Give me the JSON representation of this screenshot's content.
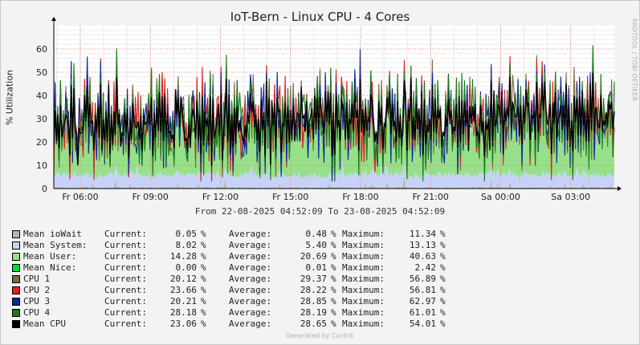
{
  "chart_data": {
    "type": "area",
    "title": "IoT-Bern - Linux CPU - 4 Cores",
    "ylabel": "% Utilization",
    "ylim": [
      0,
      70
    ],
    "yticks": [
      0,
      10,
      20,
      30,
      40,
      50,
      60
    ],
    "xlabels": [
      "Fr 06:00",
      "Fr 09:00",
      "Fr 12:00",
      "Fr 15:00",
      "Fr 18:00",
      "Fr 21:00",
      "Sa 00:00",
      "Sa 03:00"
    ],
    "x_start": "2025-08-22 04:52",
    "x_end": "2025-08-23 04:52",
    "x_hours": 24,
    "grid": true,
    "date_range": "From 22-08-2025 04:52:09 To 23-08-2025 04:52:09",
    "legend_headers": {
      "current": "Current:",
      "average": "Average:",
      "maximum": "Maximum:"
    },
    "legend_unit": "%",
    "series": [
      {
        "name": "Mean ioWait",
        "color": "#b4b4b4",
        "style": "area",
        "current": "0.05",
        "average": "0.48",
        "maximum": "11.34"
      },
      {
        "name": "Mean System:",
        "color": "#c8d2f8",
        "style": "area",
        "current": "8.02",
        "average": "5.40",
        "maximum": "13.13"
      },
      {
        "name": "Mean User:",
        "color": "#96e08a",
        "style": "area",
        "current": "14.28",
        "average": "20.69",
        "maximum": "40.63"
      },
      {
        "name": "Mean Nice:",
        "color": "#00e02a",
        "style": "area",
        "current": "0.00",
        "average": "0.01",
        "maximum": "2.42"
      },
      {
        "name": "CPU 1",
        "color": "#7a6a40",
        "style": "line",
        "current": "20.12",
        "average": "29.37",
        "maximum": "56.89"
      },
      {
        "name": "CPU 2",
        "color": "#e02020",
        "style": "line",
        "current": "23.66",
        "average": "28.22",
        "maximum": "56.81"
      },
      {
        "name": "CPU 3",
        "color": "#0a2a9a",
        "style": "line",
        "current": "20.21",
        "average": "28.85",
        "maximum": "62.97"
      },
      {
        "name": "CPU 4",
        "color": "#1a7a1a",
        "style": "line",
        "current": "28.18",
        "average": "28.19",
        "maximum": "61.01"
      },
      {
        "name": "Mean CPU",
        "color": "#000000",
        "style": "line",
        "current": "23.06",
        "average": "28.65",
        "maximum": "54.01"
      }
    ]
  },
  "watermark": "RRDTOOL / TOBI OETIKER",
  "footer": "Generated by Cacti®"
}
